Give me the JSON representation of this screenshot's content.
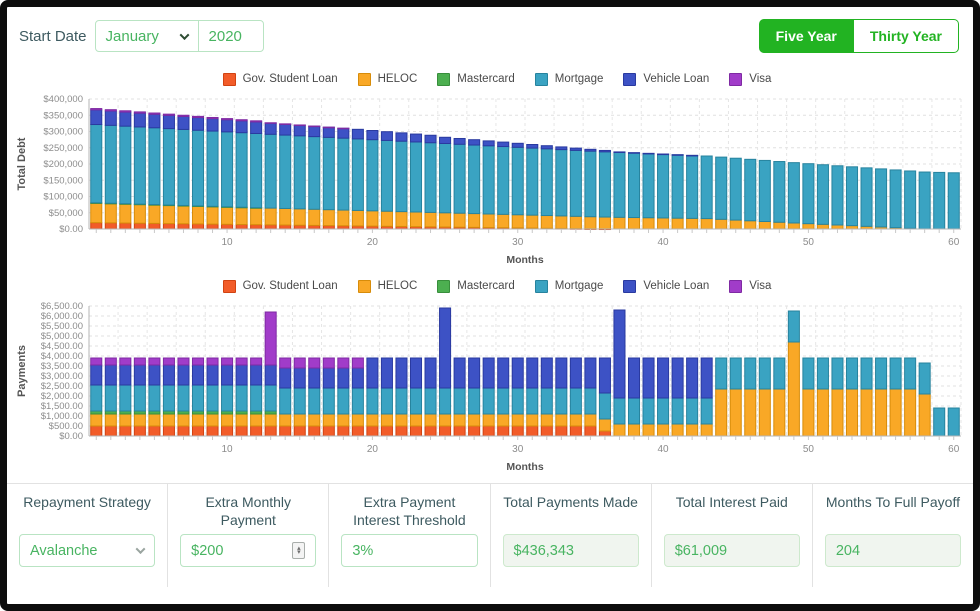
{
  "header": {
    "start_date_label": "Start Date",
    "month_value": "January",
    "year_value": "2020",
    "five_year_label": "Five Year",
    "thirty_year_label": "Thirty Year",
    "accent_green": "#22b322"
  },
  "chart_data": [
    {
      "type": "bar",
      "stacked": true,
      "ylabel": "Total Debt",
      "xlabel": "Months",
      "y_max": 400000,
      "y_ticks": [
        "$400,000",
        "$350,000",
        "$300,000",
        "$250,000",
        "$200,000",
        "$150,000",
        "$100,000",
        "$50,000",
        "$0.00"
      ],
      "x_major_ticks": [
        10,
        20,
        30,
        40,
        50,
        60
      ],
      "months": 60,
      "grid": "dashed",
      "legend_position": "top",
      "series": [
        {
          "name": "Gov. Student Loan",
          "color": "#f25c29",
          "border": "#d14312",
          "values": [
            19450,
            18900,
            18350,
            17800,
            17250,
            16650,
            16100,
            15550,
            15000,
            14450,
            13900,
            13350,
            12800,
            12250,
            11700,
            11100,
            10550,
            10000,
            9450,
            8900,
            8350,
            7800,
            7250,
            6700,
            6100,
            5550,
            5000,
            4450,
            3900,
            3350,
            2800,
            2250,
            1700,
            1150,
            600,
            250,
            0,
            0,
            0,
            0,
            0,
            0,
            0,
            0,
            0,
            0,
            0,
            0,
            0,
            0,
            0,
            0,
            0,
            0,
            0,
            0,
            0,
            0,
            0,
            0
          ]
        },
        {
          "name": "HELOC",
          "color": "#f9a826",
          "border": "#d78c0a",
          "values": [
            59350,
            58700,
            58050,
            57400,
            56750,
            56100,
            55450,
            54800,
            54150,
            53500,
            52850,
            52200,
            51550,
            50900,
            50250,
            49600,
            48950,
            48300,
            47650,
            47000,
            46350,
            45700,
            45050,
            44400,
            43750,
            43100,
            42450,
            41800,
            41150,
            40500,
            39850,
            39200,
            38550,
            37900,
            37250,
            36600,
            35950,
            35300,
            34650,
            34000,
            33350,
            32700,
            32050,
            29800,
            27550,
            25300,
            23050,
            20800,
            18500,
            16450,
            14400,
            12350,
            10300,
            8250,
            6200,
            4150,
            2100,
            0,
            0,
            0
          ]
        },
        {
          "name": "Mastercard",
          "color": "#4caf50",
          "border": "#388e3c",
          "values": [
            1845,
            1690,
            1535,
            1380,
            1225,
            1070,
            915,
            760,
            605,
            450,
            295,
            140,
            0,
            0,
            0,
            0,
            0,
            0,
            0,
            0,
            0,
            0,
            0,
            0,
            0,
            0,
            0,
            0,
            0,
            0,
            0,
            0,
            0,
            0,
            0,
            0,
            0,
            0,
            0,
            0,
            0,
            0,
            0,
            0,
            0,
            0,
            0,
            0,
            0,
            0,
            0,
            0,
            0,
            0,
            0,
            0,
            0,
            0,
            0,
            0
          ]
        },
        {
          "name": "Mortgage",
          "color": "#3aa3c2",
          "border": "#27839e",
          "values": [
            240850,
            239700,
            238550,
            237400,
            236250,
            235100,
            233950,
            232800,
            231650,
            230500,
            229350,
            228200,
            227050,
            225900,
            224750,
            223600,
            222450,
            221300,
            220150,
            219000,
            217850,
            216700,
            215550,
            214400,
            213250,
            212100,
            210950,
            209800,
            208650,
            207500,
            206350,
            205200,
            204050,
            202900,
            201750,
            200600,
            199450,
            198300,
            197150,
            196000,
            194850,
            193700,
            192550,
            191400,
            190250,
            189100,
            187950,
            186800,
            185650,
            184500,
            183350,
            182200,
            181050,
            179900,
            178750,
            177600,
            176450,
            175300,
            174150,
            173000
          ]
        },
        {
          "name": "Vehicle Loan",
          "color": "#3d52c5",
          "border": "#2a3aa0",
          "values": [
            45130,
            44260,
            43390,
            42520,
            41650,
            40780,
            39910,
            39040,
            38170,
            37300,
            36430,
            35560,
            34690,
            33820,
            32950,
            32080,
            31210,
            30340,
            29470,
            28170,
            26870,
            25570,
            24270,
            22970,
            19100,
            17750,
            16400,
            15050,
            13700,
            12350,
            11000,
            9650,
            8300,
            6950,
            5600,
            4250,
            1800,
            1400,
            1000,
            700,
            400,
            150,
            0,
            0,
            0,
            0,
            0,
            0,
            0,
            0,
            0,
            0,
            0,
            0,
            0,
            0,
            0,
            0,
            0,
            0
          ]
        },
        {
          "name": "Visa",
          "color": "#a13cc9",
          "border": "#7f2aa3",
          "values": [
            3950,
            3900,
            3850,
            3800,
            3750,
            3700,
            3650,
            3600,
            3550,
            3500,
            3450,
            3400,
            800,
            650,
            500,
            350,
            200,
            80,
            0,
            0,
            0,
            0,
            0,
            0,
            0,
            0,
            0,
            0,
            0,
            0,
            0,
            0,
            0,
            0,
            0,
            0,
            0,
            0,
            0,
            0,
            0,
            0,
            0,
            0,
            0,
            0,
            0,
            0,
            0,
            0,
            0,
            0,
            0,
            0,
            0,
            0,
            0,
            0,
            0,
            0
          ]
        }
      ]
    },
    {
      "type": "bar",
      "stacked": true,
      "ylabel": "Payments",
      "xlabel": "Months",
      "y_max": 6500,
      "y_ticks": [
        "$6,500.00",
        "$6,000.00",
        "$5,500.00",
        "$5,000.00",
        "$4,500.00",
        "$4,000.00",
        "$3,500.00",
        "$3,000.00",
        "$2,500.00",
        "$2,000.00",
        "$1,500.00",
        "$1,000.00",
        "$500.00",
        "$0.00"
      ],
      "x_major_ticks": [
        10,
        20,
        30,
        40,
        50,
        60
      ],
      "months": 60,
      "grid": "dashed",
      "legend_position": "top",
      "series": [
        {
          "name": "Gov. Student Loan",
          "color": "#f25c29",
          "border": "#d14312",
          "values": [
            500,
            500,
            500,
            500,
            500,
            500,
            500,
            500,
            500,
            500,
            500,
            500,
            500,
            500,
            500,
            500,
            500,
            500,
            500,
            500,
            500,
            500,
            500,
            500,
            500,
            500,
            500,
            500,
            500,
            500,
            500,
            500,
            500,
            500,
            500,
            250,
            0,
            0,
            0,
            0,
            0,
            0,
            0,
            0,
            0,
            0,
            0,
            0,
            0,
            0,
            0,
            0,
            0,
            0,
            0,
            0,
            0,
            0,
            0,
            0
          ]
        },
        {
          "name": "HELOC",
          "color": "#f9a826",
          "border": "#d78c0a",
          "values": [
            600,
            600,
            600,
            600,
            600,
            600,
            600,
            600,
            600,
            600,
            600,
            600,
            600,
            600,
            600,
            600,
            600,
            600,
            600,
            600,
            600,
            600,
            600,
            600,
            600,
            600,
            600,
            600,
            600,
            600,
            600,
            600,
            600,
            600,
            600,
            600,
            600,
            600,
            600,
            600,
            600,
            600,
            600,
            2350,
            2350,
            2350,
            2350,
            2350,
            4700,
            2350,
            2350,
            2350,
            2350,
            2350,
            2350,
            2350,
            2350,
            2100,
            0,
            0
          ]
        },
        {
          "name": "Mastercard",
          "color": "#4caf50",
          "border": "#388e3c",
          "values": [
            150,
            150,
            150,
            150,
            150,
            150,
            150,
            150,
            150,
            150,
            150,
            150,
            150,
            0,
            0,
            0,
            0,
            0,
            0,
            0,
            0,
            0,
            0,
            0,
            0,
            0,
            0,
            0,
            0,
            0,
            0,
            0,
            0,
            0,
            0,
            0,
            0,
            0,
            0,
            0,
            0,
            0,
            0,
            0,
            0,
            0,
            0,
            0,
            0,
            0,
            0,
            0,
            0,
            0,
            0,
            0,
            0,
            0,
            0,
            0
          ]
        },
        {
          "name": "Mortgage",
          "color": "#3aa3c2",
          "border": "#27839e",
          "values": [
            1300,
            1300,
            1300,
            1300,
            1300,
            1300,
            1300,
            1300,
            1300,
            1300,
            1300,
            1300,
            1300,
            1300,
            1300,
            1300,
            1300,
            1300,
            1300,
            1300,
            1300,
            1300,
            1300,
            1300,
            1300,
            1300,
            1300,
            1300,
            1300,
            1300,
            1300,
            1300,
            1300,
            1300,
            1300,
            1300,
            1300,
            1300,
            1300,
            1300,
            1300,
            1300,
            1300,
            1550,
            1550,
            1550,
            1550,
            1550,
            1550,
            1550,
            1550,
            1550,
            1550,
            1550,
            1550,
            1550,
            1550,
            1550,
            1400,
            1400
          ]
        },
        {
          "name": "Vehicle Loan",
          "color": "#3d52c5",
          "border": "#2a3aa0",
          "values": [
            1000,
            1000,
            1000,
            1000,
            1000,
            1000,
            1000,
            1000,
            1000,
            1000,
            1000,
            1000,
            1000,
            1000,
            1000,
            1000,
            1000,
            1000,
            1000,
            1500,
            1500,
            1500,
            1500,
            1500,
            4000,
            1500,
            1500,
            1500,
            1500,
            1500,
            1500,
            1500,
            1500,
            1500,
            1500,
            1750,
            4400,
            2000,
            2000,
            2000,
            2000,
            2000,
            2000,
            0,
            0,
            0,
            0,
            0,
            0,
            0,
            0,
            0,
            0,
            0,
            0,
            0,
            0,
            0,
            0,
            0
          ]
        },
        {
          "name": "Visa",
          "color": "#a13cc9",
          "border": "#7f2aa3",
          "values": [
            350,
            350,
            350,
            350,
            350,
            350,
            350,
            350,
            350,
            350,
            350,
            350,
            2650,
            500,
            500,
            500,
            500,
            500,
            500,
            0,
            0,
            0,
            0,
            0,
            0,
            0,
            0,
            0,
            0,
            0,
            0,
            0,
            0,
            0,
            0,
            0,
            0,
            0,
            0,
            0,
            0,
            0,
            0,
            0,
            0,
            0,
            0,
            0,
            0,
            0,
            0,
            0,
            0,
            0,
            0,
            0,
            0,
            0,
            0,
            0
          ]
        }
      ]
    }
  ],
  "footer": {
    "columns": [
      {
        "label": "Repayment Strategy",
        "value": "Avalanche",
        "control": "select"
      },
      {
        "label": "Extra Monthly Payment",
        "value": "$200",
        "control": "number"
      },
      {
        "label": "Extra Payment Interest Threshold",
        "value": "3%",
        "control": "input"
      },
      {
        "label": "Total Payments Made",
        "value": "$436,343",
        "control": "readonly"
      },
      {
        "label": "Total Interest Paid",
        "value": "$61,009",
        "control": "readonly"
      },
      {
        "label": "Months To Full Payoff",
        "value": "204",
        "control": "readonly"
      }
    ]
  }
}
